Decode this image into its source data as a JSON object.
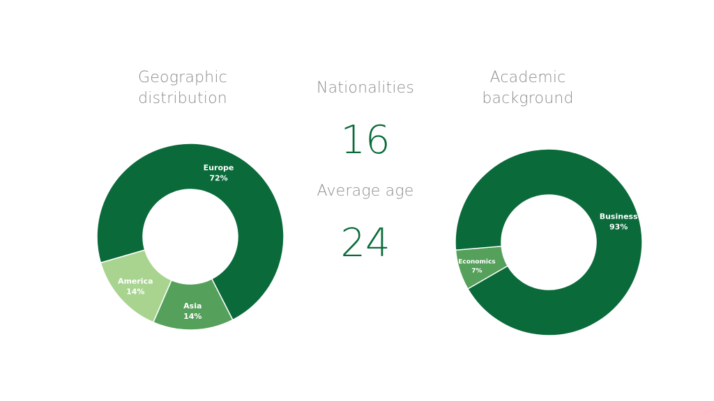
{
  "nationalities": {
    "title": "Nationalities",
    "value": "16"
  },
  "average_age": {
    "title": "Average age",
    "value": "24"
  },
  "chart_data": [
    {
      "type": "pie",
      "title_lines": [
        "Geographic",
        "distribution"
      ],
      "donut": true,
      "start_angle_deg": 63,
      "categories": [
        "Asia",
        "America",
        "Europe"
      ],
      "values": [
        14,
        14,
        72
      ],
      "value_labels": [
        "14%",
        "14%",
        "72%"
      ],
      "colors": [
        "#55a05a",
        "#a8d490",
        "#0a6a3a"
      ]
    },
    {
      "type": "pie",
      "title_lines": [
        "Academic",
        "background"
      ],
      "donut": true,
      "start_angle_deg": 150,
      "categories": [
        "Economics",
        "Business"
      ],
      "values": [
        7,
        93
      ],
      "value_labels": [
        "7%",
        "93%"
      ],
      "colors": [
        "#55a05a",
        "#0a6a3a"
      ]
    }
  ]
}
